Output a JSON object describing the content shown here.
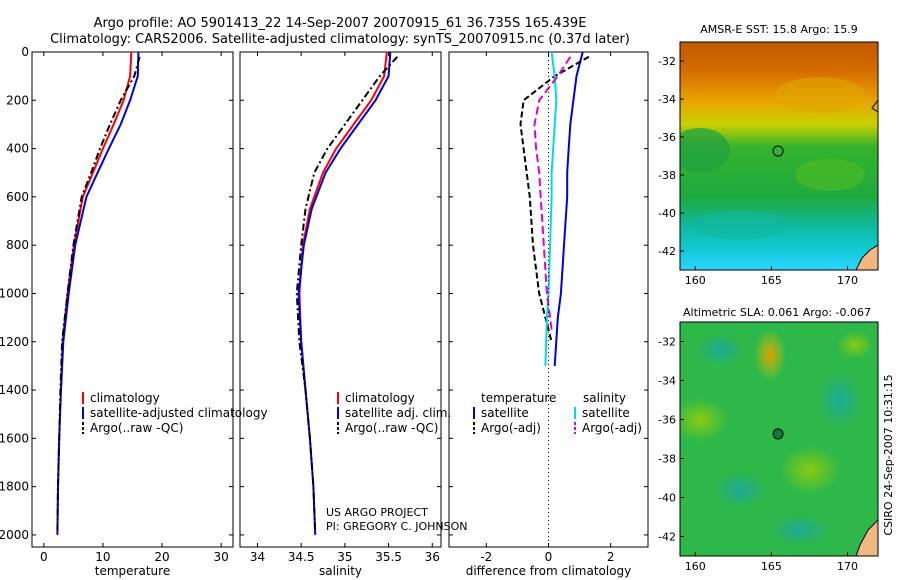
{
  "figure": {
    "title_line1": "Argo profile: AO 5901413_22 14-Sep-2007 20070915_61 36.735S 165.439E",
    "title_line2": "Climatology: CARS2006. Satellite-adjusted climatology: synTS_20070915.nc (0.37d later)",
    "project_line1": "US ARGO PROJECT",
    "project_line2": "PI: GREGORY C. JOHNSON",
    "timestamp": "CSIRO 24-Sep-2007 10:31:15"
  },
  "colors": {
    "climatology": "#ff0000",
    "satellite": "#0000dd",
    "argo": "#000000",
    "sat_salinity": "#00dddd",
    "argo_salinity": "#dd00dd"
  },
  "chart_data": [
    {
      "type": "line",
      "name": "temperature-profile",
      "xlabel": "temperature",
      "xlim": [
        -2,
        32
      ],
      "ylim": [
        2050,
        0
      ],
      "xticks": [
        0,
        10,
        20,
        30
      ],
      "yticks": [
        0,
        200,
        400,
        600,
        800,
        1000,
        1200,
        1400,
        1600,
        1800,
        2000
      ],
      "legend": {
        "position": "middle-right",
        "entries": [
          "climatology",
          "satellite-adjusted climatology",
          "Argo(..raw -QC)"
        ]
      },
      "series": [
        {
          "name": "climatology",
          "color": "#ff0000",
          "dash": "",
          "x": [
            14.8,
            14.6,
            13.5,
            11.8,
            10.0,
            8.3,
            6.6,
            5.1,
            4.0,
            3.2,
            2.9
          ],
          "y": [
            0,
            100,
            200,
            300,
            400,
            500,
            600,
            800,
            1000,
            1200,
            1400
          ]
        },
        {
          "name": "satellite-adjusted climatology",
          "color": "#0000dd",
          "dash": "",
          "x": [
            16.0,
            15.9,
            14.6,
            13.0,
            11.0,
            9.1,
            7.2,
            5.3,
            4.2,
            3.3,
            2.9,
            2.6,
            2.4,
            2.3
          ],
          "y": [
            0,
            100,
            200,
            300,
            400,
            500,
            600,
            800,
            1000,
            1200,
            1400,
            1600,
            1800,
            2000
          ]
        },
        {
          "name": "Argo(..raw -QC)",
          "color": "#000000",
          "dash": "7,3,2,3",
          "x": [
            16.2,
            15.3,
            13.0,
            11.2,
            9.5,
            8.0,
            6.4,
            5.0,
            4.0,
            3.1,
            2.8,
            2.6,
            2.4,
            2.3
          ],
          "y": [
            20,
            100,
            200,
            300,
            400,
            500,
            600,
            800,
            1000,
            1200,
            1400,
            1600,
            1800,
            1990
          ]
        }
      ]
    },
    {
      "type": "line",
      "name": "salinity-profile",
      "xlabel": "salinity",
      "xlim": [
        33.8,
        36.1
      ],
      "ylim": [
        2050,
        0
      ],
      "xticks": [
        34,
        34.5,
        35,
        35.5,
        36
      ],
      "legend": {
        "position": "middle-right",
        "entries": [
          "climatology",
          "satellite adj. clim.",
          "Argo(..raw -QC)"
        ]
      },
      "series": [
        {
          "name": "climatology",
          "color": "#ff0000",
          "dash": "",
          "x": [
            35.48,
            35.45,
            35.3,
            35.1,
            34.9,
            34.75,
            34.6,
            34.52,
            34.48,
            34.5,
            34.55
          ],
          "y": [
            0,
            100,
            200,
            300,
            400,
            500,
            650,
            800,
            1000,
            1200,
            1400
          ]
        },
        {
          "name": "satellite adj. clim.",
          "color": "#0000dd",
          "dash": "",
          "x": [
            35.52,
            35.5,
            35.35,
            35.15,
            34.95,
            34.78,
            34.62,
            34.53,
            34.47,
            34.5,
            34.55,
            34.6,
            34.64,
            34.66
          ],
          "y": [
            0,
            100,
            200,
            300,
            400,
            500,
            650,
            800,
            1000,
            1200,
            1400,
            1600,
            1800,
            2000
          ]
        },
        {
          "name": "Argo(..raw -QC)",
          "color": "#000000",
          "dash": "7,3,2,3",
          "x": [
            35.6,
            35.4,
            35.2,
            35.0,
            34.8,
            34.65,
            34.55,
            34.5,
            34.45,
            34.48,
            34.55,
            34.6,
            34.64,
            34.66
          ],
          "y": [
            20,
            100,
            200,
            300,
            400,
            500,
            650,
            800,
            1000,
            1200,
            1400,
            1600,
            1800,
            1990
          ]
        }
      ]
    },
    {
      "type": "line",
      "name": "difference-profile",
      "xlabel": "difference from climatology",
      "xlim": [
        -3.2,
        3.2
      ],
      "ylim": [
        2050,
        0
      ],
      "xticks": [
        -2,
        0,
        2
      ],
      "legend": {
        "position": "middle",
        "headers": [
          "temperature",
          "salinity"
        ],
        "entries": [
          "satellite",
          "Argo(-adj)",
          "satellite",
          "Argo(-adj)"
        ]
      },
      "series": [
        {
          "name": "temperature satellite",
          "color": "#0000dd",
          "dash": "",
          "x": [
            1.1,
            0.9,
            0.8,
            0.7,
            0.65,
            0.6,
            0.6,
            0.5,
            0.4,
            0.3,
            0.2
          ],
          "y": [
            0,
            100,
            200,
            300,
            400,
            500,
            600,
            800,
            1000,
            1100,
            1300
          ]
        },
        {
          "name": "temperature Argo(-adj)",
          "color": "#000000",
          "dash": "6,3",
          "x": [
            1.3,
            0.2,
            -0.8,
            -0.9,
            -0.8,
            -0.7,
            -0.6,
            -0.5,
            -0.3,
            -0.1,
            0.1
          ],
          "y": [
            20,
            100,
            200,
            300,
            400,
            500,
            600,
            800,
            1000,
            1100,
            1200
          ]
        },
        {
          "name": "salinity satellite",
          "color": "#00dddd",
          "dash": "",
          "x": [
            0.1,
            0.2,
            0.25,
            0.2,
            0.15,
            0.1,
            0.1,
            0.05,
            0.0,
            -0.05,
            -0.1
          ],
          "y": [
            0,
            100,
            200,
            300,
            400,
            500,
            600,
            800,
            1000,
            1100,
            1300
          ]
        },
        {
          "name": "salinity Argo(-adj)",
          "color": "#dd00dd",
          "dash": "8,4",
          "x": [
            0.7,
            0.3,
            -0.3,
            -0.45,
            -0.4,
            -0.3,
            -0.25,
            -0.15,
            -0.05,
            0.05,
            0.1
          ],
          "y": [
            20,
            100,
            200,
            300,
            400,
            500,
            600,
            800,
            1000,
            1100,
            1150
          ]
        }
      ]
    },
    {
      "type": "heatmap",
      "name": "sst-map",
      "title": "AMSR-E SST: 15.8 Argo: 15.9",
      "xlim": [
        159,
        172
      ],
      "ylim": [
        -43,
        -31
      ],
      "xticks": [
        160,
        165,
        170
      ],
      "yticks": [
        -32,
        -34,
        -36,
        -38,
        -40,
        -42
      ],
      "marker": {
        "lon": 165.44,
        "lat": -36.74
      }
    },
    {
      "type": "heatmap",
      "name": "sla-map",
      "title": "Altimetric SLA: 0.061 Argo: -0.067",
      "xlim": [
        159,
        172
      ],
      "ylim": [
        -43,
        -31
      ],
      "xticks": [
        160,
        165,
        170
      ],
      "yticks": [
        -32,
        -34,
        -36,
        -38,
        -40,
        -42
      ],
      "marker": {
        "lon": 165.44,
        "lat": -36.74
      }
    }
  ]
}
